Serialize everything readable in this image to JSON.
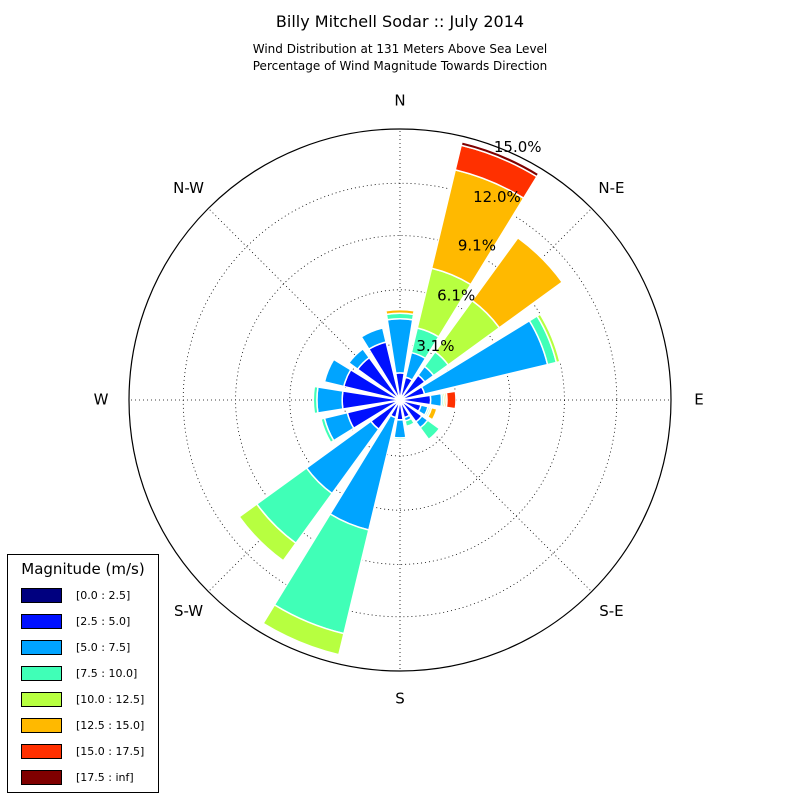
{
  "title": "Billy Mitchell Sodar :: July 2014",
  "subtitle_lines": [
    "Wind Distribution at 131 Meters Above Sea Level",
    "Percentage of Wind Magnitude Towards Direction"
  ],
  "legend": {
    "title": "Magnitude (m/s)",
    "items": [
      {
        "label": "[0.0 : 2.5]",
        "color": "#00007f"
      },
      {
        "label": "[2.5 : 5.0]",
        "color": "#0010ff"
      },
      {
        "label": "[5.0 : 7.5]",
        "color": "#00a4ff"
      },
      {
        "label": "[7.5 : 10.0]",
        "color": "#40ffb7"
      },
      {
        "label": "[10.0 : 12.5]",
        "color": "#b7ff40"
      },
      {
        "label": "[12.5 : 15.0]",
        "color": "#ffb900"
      },
      {
        "label": "[15.0 : 17.5]",
        "color": "#ff3000"
      },
      {
        "label": "[17.5 : inf]",
        "color": "#7f0000"
      }
    ]
  },
  "chart_data": {
    "type": "windrose",
    "title": "Billy Mitchell Sodar :: July 2014",
    "direction_labels": [
      "N",
      "N-E",
      "E",
      "S-E",
      "S",
      "S-W",
      "W",
      "N-W"
    ],
    "radial_ticks": [
      "3.1%",
      "6.1%",
      "9.1%",
      "12.0%",
      "15.0%"
    ],
    "radial_tick_values": [
      3.1,
      6.1,
      9.1,
      12.0,
      15.0
    ],
    "rmax": 15.0,
    "bin_width_deg": 22.5,
    "directions_deg": [
      0,
      22.5,
      45,
      67.5,
      90,
      112.5,
      135,
      157.5,
      180,
      202.5,
      225,
      247.5,
      270,
      292.5,
      315,
      337.5
    ],
    "series": [
      {
        "name": "[0.0 : 2.5]",
        "values": [
          0.2,
          0.2,
          0.2,
          0.2,
          0.2,
          0.2,
          0.2,
          0.2,
          0.2,
          0.2,
          0.2,
          0.2,
          0.2,
          0.2,
          0.2,
          0.2
        ]
      },
      {
        "name": "[2.5 : 5.0]",
        "values": [
          1.3,
          1.1,
          1.5,
          1.2,
          1.5,
          1.0,
          1.3,
          0.8,
          0.9,
          0.8,
          1.8,
          2.8,
          3.0,
          3.0,
          2.7,
          3.1
        ]
      },
      {
        "name": "[5.0 : 7.5]",
        "values": [
          3.0,
          1.4,
          0.6,
          7.0,
          0.6,
          0.4,
          0.4,
          0.2,
          1.0,
          6.4,
          4.4,
          1.3,
          1.4,
          1.1,
          0.6,
          0.8
        ]
      },
      {
        "name": "[7.5 : 10.0]",
        "values": [
          0.3,
          1.4,
          1.0,
          0.5,
          0.1,
          0.1,
          0.8,
          0.3,
          0.1,
          5.9,
          3.4,
          0.2,
          0.2,
          0.0,
          0.0,
          0.0
        ]
      },
      {
        "name": "[10.0 : 12.5]",
        "values": [
          0.0,
          3.4,
          3.5,
          0.2,
          0.1,
          0.1,
          0.0,
          0.0,
          0.0,
          1.2,
          1.2,
          0.0,
          0.0,
          0.0,
          0.0,
          0.0
        ]
      },
      {
        "name": "[12.5 : 15.0]",
        "values": [
          0.2,
          5.6,
          4.3,
          0.0,
          0.1,
          0.3,
          0.0,
          0.0,
          0.0,
          0.0,
          0.0,
          0.0,
          0.0,
          0.0,
          0.0,
          0.0
        ]
      },
      {
        "name": "[15.0 : 17.5]",
        "values": [
          0.0,
          1.4,
          0.0,
          0.0,
          0.5,
          0.0,
          0.0,
          0.0,
          0.0,
          0.0,
          0.0,
          0.0,
          0.0,
          0.0,
          0.0,
          0.0
        ]
      },
      {
        "name": "[17.5 : inf]",
        "values": [
          0.0,
          0.2,
          0.0,
          0.0,
          0.0,
          0.0,
          0.0,
          0.0,
          0.0,
          0.0,
          0.0,
          0.0,
          0.0,
          0.0,
          0.0,
          0.0
        ]
      }
    ]
  }
}
